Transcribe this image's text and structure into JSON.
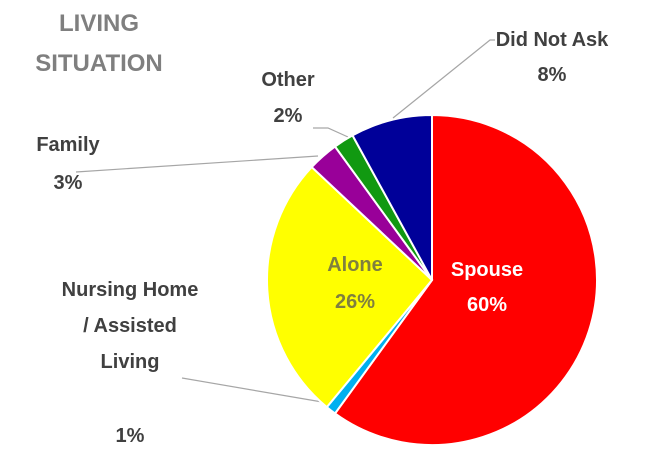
{
  "chart_data": {
    "type": "pie",
    "title": "LIVING SITUATION",
    "categories": [
      "Spouse",
      "Nursing Home / Assisted Living",
      "Alone",
      "Family",
      "Other",
      "Did Not Ask"
    ],
    "values": [
      60,
      1,
      26,
      3,
      2,
      8
    ],
    "value_labels": [
      "60%",
      "1%",
      "26%",
      "3%",
      "2%",
      "8%"
    ],
    "colors": [
      "#ff0000",
      "#00b0f0",
      "#ffff00",
      "#990099",
      "#119911",
      "#000099"
    ]
  }
}
